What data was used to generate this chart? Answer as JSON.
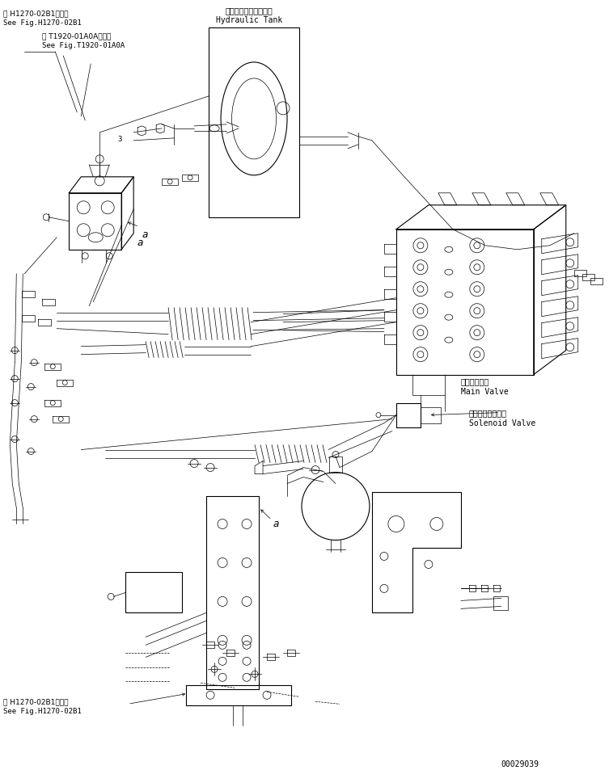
{
  "bg_color": "#ffffff",
  "line_color": "#000000",
  "fig_width": 7.53,
  "fig_height": 9.54,
  "dpi": 100,
  "labels": {
    "hydraulic_tank_jp": "ハイドロリックタンク",
    "hydraulic_tank_en": "Hydraulic Tank",
    "main_valve_jp": "メインバルブ",
    "main_valve_en": "Main Valve",
    "solenoid_valve_jp": "ソレノイドバルブ",
    "solenoid_valve_en": "Solenoid Valve",
    "ref1_jp": "第 H1270-02B1図参照",
    "ref1_en": "See Fig.H1270-02B1",
    "ref2_jp": "第 T1920-01A0A図参照",
    "ref2_en": "See Fig.T1920-01A0A",
    "ref3_jp": "第 H1270-02B1図参照",
    "ref3_en": "See Fig.H1270-02B1",
    "part_number": "00029039",
    "label_a1": "a",
    "label_a2": "a"
  },
  "font_sizes": {
    "tiny": 5.5,
    "small": 6.5,
    "medium": 7.5,
    "large": 8.5,
    "part_num": 7
  }
}
